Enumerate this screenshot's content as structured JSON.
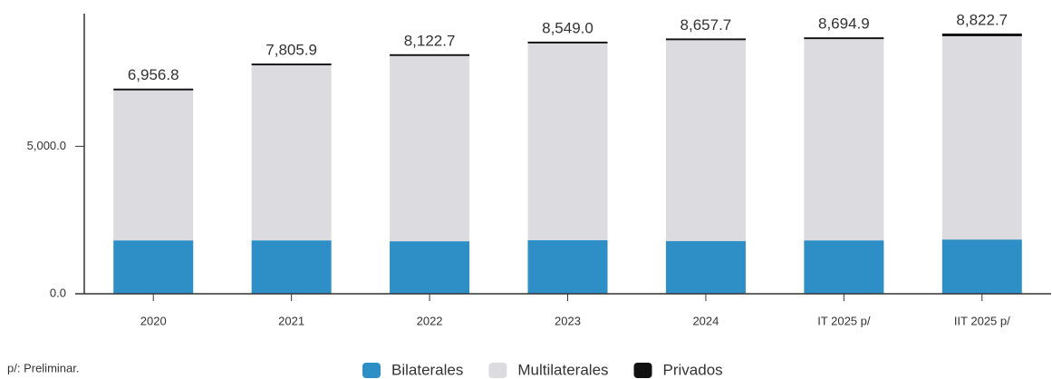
{
  "chart_data": {
    "type": "stacked_bar",
    "categories": [
      "2020",
      "2021",
      "2022",
      "2023",
      "2024",
      "IT 2025 p/",
      "IIT 2025 p/"
    ],
    "series": [
      {
        "name": "Bilaterales",
        "color": "#2e8fc6",
        "values": [
          1810,
          1810,
          1780,
          1820,
          1790,
          1810,
          1840
        ]
      },
      {
        "name": "Multilaterales",
        "color": "#dcdce0",
        "values": [
          5086.8,
          5935.9,
          6282.7,
          6669.0,
          6807.7,
          6824.9,
          6892.7
        ]
      },
      {
        "name": "Privados",
        "color": "#111111",
        "values": [
          60,
          60,
          60,
          60,
          60,
          60,
          90
        ]
      }
    ],
    "total_labels": [
      "6,956.8",
      "7,805.9",
      "8,122.7",
      "8,549.0",
      "8,657.7",
      "8,694.9",
      "8,822.7"
    ],
    "ylim": [
      0,
      9500
    ],
    "yticks": [
      {
        "value": 0,
        "label": "0.0"
      },
      {
        "value": 5000,
        "label": "5,000.0"
      }
    ],
    "note": "p/: Preliminar.",
    "legend": "bottom"
  }
}
